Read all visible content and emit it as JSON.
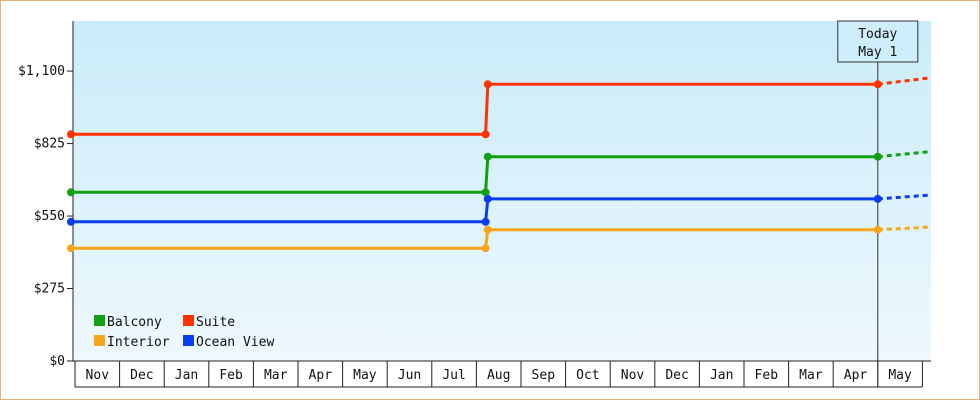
{
  "chart_data": {
    "type": "line",
    "step": true,
    "y_ticks": [
      "$0",
      "$275",
      "$550",
      "$825",
      "$1,100"
    ],
    "y_tick_values": [
      0,
      275,
      550,
      825,
      1100
    ],
    "ylim": [
      0,
      1290
    ],
    "months": [
      "Nov",
      "Dec",
      "Jan",
      "Feb",
      "Mar",
      "Apr",
      "May",
      "Jun",
      "Jul",
      "Aug",
      "Sep",
      "Oct",
      "Nov",
      "Dec",
      "Jan",
      "Feb",
      "Mar",
      "Apr",
      "May"
    ],
    "today_label": [
      "Today",
      "May 1"
    ],
    "series": [
      {
        "name": "Suite",
        "color": "#ff3300",
        "points": [
          [
            0,
            860
          ],
          [
            9.25,
            860
          ],
          [
            9.3,
            1050
          ],
          [
            18.0,
            1050
          ]
        ],
        "forecast_end": 1075
      },
      {
        "name": "Balcony",
        "color": "#11a011",
        "points": [
          [
            0,
            640
          ],
          [
            9.25,
            640
          ],
          [
            9.3,
            775
          ],
          [
            18.0,
            775
          ]
        ],
        "forecast_end": 795
      },
      {
        "name": "Ocean View",
        "color": "#0a3cf0",
        "points": [
          [
            0,
            528
          ],
          [
            9.25,
            528
          ],
          [
            9.3,
            615
          ],
          [
            18.0,
            615
          ]
        ],
        "forecast_end": 630
      },
      {
        "name": "Interior",
        "color": "#f7a51a",
        "points": [
          [
            0,
            428
          ],
          [
            9.25,
            428
          ],
          [
            9.3,
            498
          ],
          [
            18.0,
            498
          ]
        ],
        "forecast_end": 508
      }
    ],
    "legend": [
      {
        "name": "Balcony",
        "color": "#11a011"
      },
      {
        "name": "Suite",
        "color": "#ff3300"
      },
      {
        "name": "Interior",
        "color": "#f7a51a"
      },
      {
        "name": "Ocean View",
        "color": "#0a3cf0"
      }
    ],
    "legend_position": "bottom-left",
    "grid": false
  }
}
